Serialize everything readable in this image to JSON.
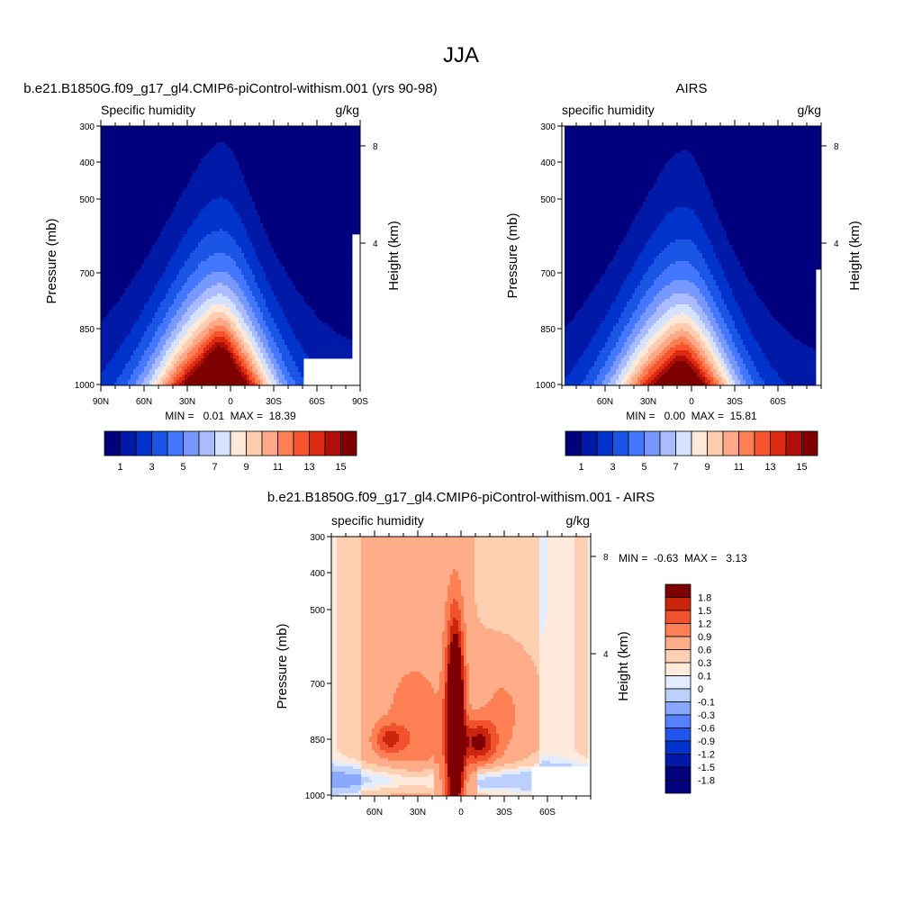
{
  "figure": {
    "main_title": "JJA"
  },
  "palette_16": [
    "#00007f",
    "#0019a6",
    "#0033cc",
    "#1a55e6",
    "#4477ff",
    "#7799ff",
    "#aabbff",
    "#d5e2ff",
    "#ffe8d8",
    "#ffccb0",
    "#ffa888",
    "#ff7f55",
    "#f75430",
    "#dd2a12",
    "#b00f07",
    "#7f0000"
  ],
  "palette_diff": [
    "#00007f",
    "#0019a6",
    "#0033cc",
    "#2255ee",
    "#5580ff",
    "#88a8ff",
    "#bcd0ff",
    "#e4ecff",
    "#ffeadc",
    "#ffcfb2",
    "#ffad88",
    "#ff8055",
    "#f0522e",
    "#cc250d",
    "#7f0000"
  ],
  "chart_data": [
    {
      "type": "heatmap",
      "title": "b.e21.B1850G.f09_g17_gl4.CMIP6-piControl-withism.001 (yrs 90-98)",
      "left_label": "Specific humidity",
      "right_label": "g/kg",
      "ylabel": "Pressure (mb)",
      "ylabel_right": "Height (km)",
      "yticks": [
        "300",
        "400",
        "500",
        "700",
        "850",
        "1000"
      ],
      "yticks_right": [
        "8",
        "4"
      ],
      "xticks": [
        "90N",
        "60N",
        "30N",
        "0",
        "30S",
        "60S",
        "90S"
      ],
      "stats": "MIN =   0.01  MAX =  18.39",
      "colorbar_labels": [
        "1",
        "3",
        "5",
        "7",
        "9",
        "11",
        "13",
        "15"
      ],
      "levels": [
        1,
        2,
        3,
        4,
        5,
        6,
        7,
        8,
        9,
        10,
        11,
        12,
        13,
        14,
        15
      ],
      "peak_value": 18.39,
      "peak_latitude": 8,
      "min_value": 0.01
    },
    {
      "type": "heatmap",
      "title": "AIRS",
      "left_label": "specific humidity",
      "right_label": "g/kg",
      "ylabel": "Pressure (mb)",
      "ylabel_right": "Height (km)",
      "yticks": [
        "300",
        "400",
        "500",
        "700",
        "850",
        "1000"
      ],
      "yticks_right": [
        "8",
        "4"
      ],
      "xticks": [
        "60N",
        "30N",
        "0",
        "30S",
        "60S"
      ],
      "stats": "MIN =   0.00  MAX =  15.81",
      "colorbar_labels": [
        "1",
        "3",
        "5",
        "7",
        "9",
        "11",
        "13",
        "15"
      ],
      "levels": [
        1,
        2,
        3,
        4,
        5,
        6,
        7,
        8,
        9,
        10,
        11,
        12,
        13,
        14,
        15
      ],
      "peak_value": 15.81,
      "peak_latitude": 8,
      "min_value": 0.0
    },
    {
      "type": "heatmap",
      "title": "b.e21.B1850G.f09_g17_gl4.CMIP6-piControl-withism.001 - AIRS",
      "left_label": "specific humidity",
      "right_label": "g/kg",
      "ylabel": "Pressure (mb)",
      "ylabel_right": "Height (km)",
      "yticks": [
        "300",
        "400",
        "500",
        "700",
        "850",
        "1000"
      ],
      "yticks_right": [
        "8",
        "4"
      ],
      "xticks": [
        "60N",
        "30N",
        "0",
        "30S",
        "60S"
      ],
      "stats": "MIN =  -0.63  MAX =   3.13",
      "colorbar_labels": [
        "1.8",
        "1.5",
        "1.2",
        "0.9",
        "0.6",
        "0.3",
        "0.1",
        "0",
        "-0.1",
        "-0.3",
        "-0.6",
        "-0.9",
        "-1.2",
        "-1.5",
        "-1.8"
      ],
      "levels": [
        -1.8,
        -1.5,
        -1.2,
        -0.9,
        -0.6,
        -0.3,
        -0.1,
        0,
        0.1,
        0.3,
        0.6,
        0.9,
        1.2,
        1.5,
        1.8
      ],
      "peak_value": 3.13,
      "peak_latitude": 5,
      "min_value": -0.63
    }
  ]
}
